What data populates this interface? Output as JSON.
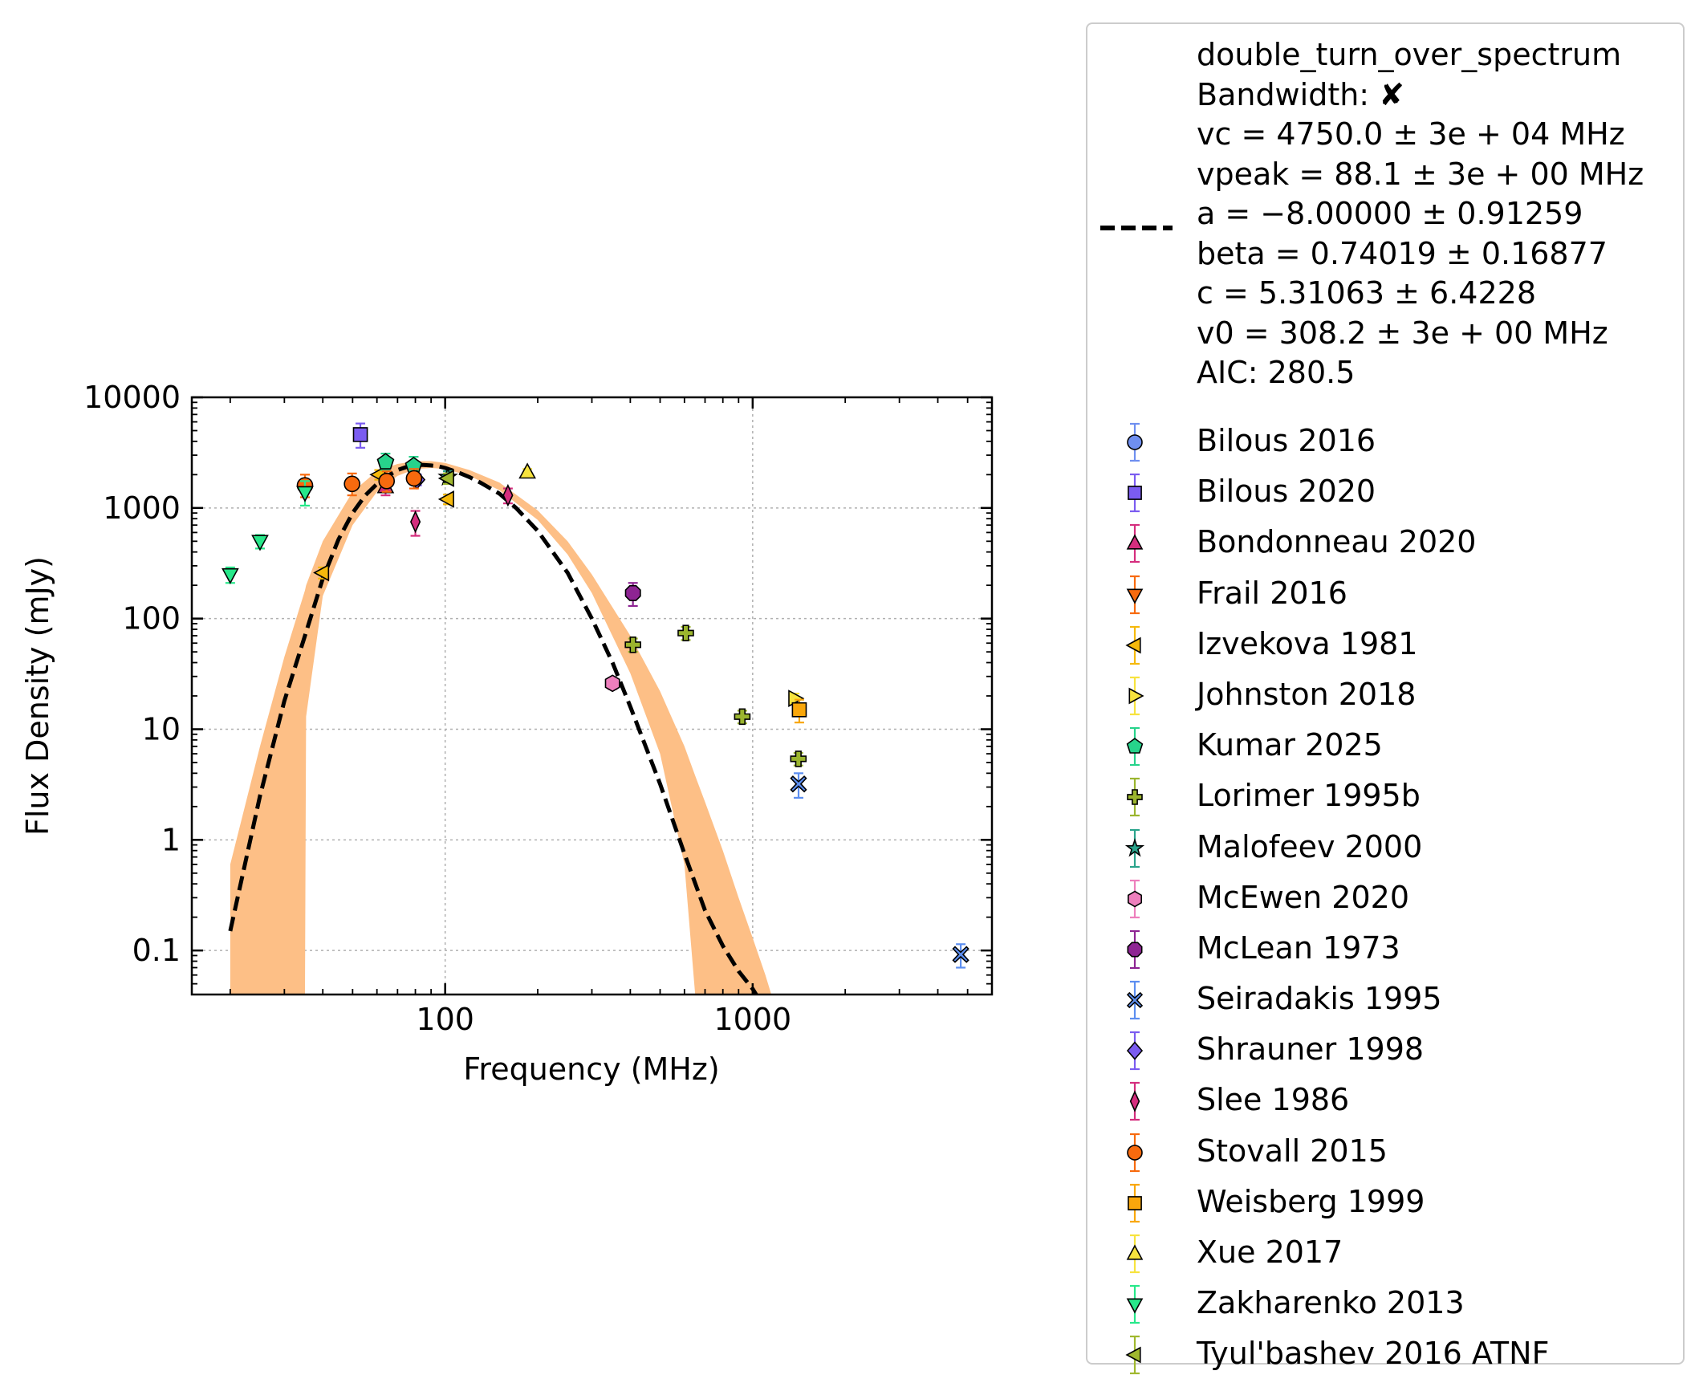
{
  "chart_data": {
    "type": "scatter",
    "xlabel": "Frequency (MHz)",
    "ylabel": "Flux Density (mJy)",
    "xscale": "log",
    "yscale": "log",
    "xlim": [
      15,
      6000
    ],
    "ylim": [
      0.04,
      10000
    ],
    "grid": true,
    "legend_position": "outside right",
    "x_tick_labels": [
      {
        "value": 100,
        "label": "100"
      },
      {
        "value": 1000,
        "label": "1000"
      }
    ],
    "y_tick_labels": [
      {
        "value": 0.1,
        "label": "0.1"
      },
      {
        "value": 1,
        "label": "1"
      },
      {
        "value": 10,
        "label": "10"
      },
      {
        "value": 100,
        "label": "100"
      },
      {
        "value": 1000,
        "label": "1000"
      },
      {
        "value": 10000,
        "label": "10000"
      }
    ],
    "fit": {
      "model_name": "double_turn_over_spectrum",
      "legend_lines": [
        "double_turn_over_spectrum",
        "Bandwidth: ✘",
        "vc = 4750.0 ± 3e + 04 MHz",
        "vpeak = 88.1 ± 3e + 00 MHz",
        "a = −8.00000 ± 0.91259",
        "beta = 0.74019 ± 0.16877",
        "c = 5.31063 ± 6.4228",
        "v0 = 308.2 ± 3e + 00 MHz",
        "AIC: 280.5"
      ],
      "curve": {
        "x": [
          20,
          25,
          30,
          35,
          40,
          45,
          50,
          55,
          60,
          65,
          70,
          75,
          80,
          85,
          90,
          95,
          100,
          110,
          120,
          130,
          150,
          170,
          200,
          250,
          300,
          350,
          400,
          500,
          600,
          700,
          800,
          900,
          1000,
          1050
        ],
        "y": [
          0.15,
          2.5,
          18,
          70,
          230,
          520,
          900,
          1300,
          1650,
          1950,
          2200,
          2350,
          2450,
          2450,
          2420,
          2380,
          2300,
          2100,
          1900,
          1700,
          1350,
          1000,
          620,
          260,
          100,
          40,
          16,
          3.2,
          0.75,
          0.23,
          0.11,
          0.065,
          0.045,
          0.036
        ]
      },
      "band": {
        "x": [
          20,
          25,
          30,
          35,
          35.3,
          40,
          50,
          60,
          70,
          80,
          90,
          100,
          120,
          150,
          200,
          250,
          300,
          400,
          500,
          600,
          650,
          700,
          800,
          900,
          1000,
          1100,
          1150
        ],
        "upper": [
          0.6,
          7,
          45,
          180,
          200,
          500,
          1400,
          2150,
          2500,
          2650,
          2650,
          2550,
          2200,
          1700,
          950,
          500,
          250,
          70,
          22,
          7,
          3.8,
          2.2,
          0.8,
          0.3,
          0.13,
          0.06,
          0.04
        ],
        "lower": [
          0.04,
          0.04,
          0.04,
          0.04,
          13,
          160,
          700,
          1400,
          1950,
          2250,
          2300,
          2250,
          1950,
          1450,
          780,
          380,
          170,
          32,
          6,
          0.6,
          0.04,
          0.04,
          0.04,
          0.04,
          0.04,
          0.04,
          0.04
        ],
        "color": "#fdbf86"
      }
    },
    "series": [
      {
        "name": "Bilous 2016",
        "marker": "circle",
        "color": "#6f8ff0",
        "points": []
      },
      {
        "name": "Bilous 2020",
        "marker": "square",
        "color": "#7b5cf0",
        "points": [
          {
            "x": 53,
            "y": 4600,
            "lo": 3500,
            "hi": 5800
          }
        ]
      },
      {
        "name": "Bondonneau 2020",
        "marker": "triangle-up",
        "color": "#d52e7e",
        "points": [
          {
            "x": 64,
            "y": 1550,
            "lo": 1300,
            "hi": 1850
          }
        ]
      },
      {
        "name": "Frail 2016",
        "marker": "triangle-down",
        "color": "#f76a0e",
        "points": []
      },
      {
        "name": "Izvekova 1981",
        "marker": "triangle-left",
        "color": "#f5b90c",
        "points": [
          {
            "x": 40,
            "y": 260,
            "lo": 230,
            "hi": 290
          },
          {
            "x": 61,
            "y": 2000,
            "lo": 1800,
            "hi": 2200
          },
          {
            "x": 102,
            "y": 1200,
            "lo": 1080,
            "hi": 1320
          }
        ]
      },
      {
        "name": "Johnston 2018",
        "marker": "triangle-right",
        "color": "#f7e33e",
        "points": [
          {
            "x": 1369,
            "y": 19,
            "lo": 17,
            "hi": 21
          }
        ]
      },
      {
        "name": "Kumar 2025",
        "marker": "pentagon",
        "color": "#27d38b",
        "points": [
          {
            "x": 64,
            "y": 2600,
            "lo": 2200,
            "hi": 3100
          },
          {
            "x": 79,
            "y": 2400,
            "lo": 2000,
            "hi": 2900
          }
        ]
      },
      {
        "name": "Lorimer 1995b",
        "marker": "plus",
        "color": "#9bb52e",
        "points": [
          {
            "x": 408,
            "y": 58,
            "lo": 50,
            "hi": 66
          },
          {
            "x": 606,
            "y": 74,
            "lo": 64,
            "hi": 84
          },
          {
            "x": 925,
            "y": 13,
            "lo": 11.3,
            "hi": 14.7
          },
          {
            "x": 1408,
            "y": 5.4,
            "lo": 4.7,
            "hi": 6.1
          }
        ]
      },
      {
        "name": "Malofeev 2000",
        "marker": "star",
        "color": "#2ba48c",
        "points": [
          {
            "x": 102,
            "y": 1900,
            "lo": 1650,
            "hi": 2150
          }
        ]
      },
      {
        "name": "McEwen 2020",
        "marker": "hexagon",
        "color": "#ee7fbd",
        "points": [
          {
            "x": 350,
            "y": 26,
            "lo": 23,
            "hi": 29
          }
        ]
      },
      {
        "name": "McLean 1973",
        "marker": "octagon",
        "color": "#8e2493",
        "points": [
          {
            "x": 408,
            "y": 170,
            "lo": 130,
            "hi": 210
          }
        ]
      },
      {
        "name": "Seiradakis 1995",
        "marker": "x",
        "color": "#5c8ef0",
        "points": [
          {
            "x": 1410,
            "y": 3.2,
            "lo": 2.4,
            "hi": 4.0
          },
          {
            "x": 4750,
            "y": 0.092,
            "lo": 0.07,
            "hi": 0.114
          }
        ]
      },
      {
        "name": "Shrauner 1998",
        "marker": "diamond",
        "color": "#7b5cf0",
        "points": [
          {
            "x": 81,
            "y": 1800,
            "lo": 1600,
            "hi": 2000
          }
        ]
      },
      {
        "name": "Slee 1986",
        "marker": "thin-diamond",
        "color": "#d52e7e",
        "points": [
          {
            "x": 80,
            "y": 750,
            "lo": 560,
            "hi": 940
          },
          {
            "x": 160,
            "y": 1300,
            "lo": 1100,
            "hi": 1500
          }
        ]
      },
      {
        "name": "Stovall 2015",
        "marker": "circle",
        "color": "#f76a0e",
        "points": [
          {
            "x": 35,
            "y": 1600,
            "lo": 1250,
            "hi": 2000
          },
          {
            "x": 49.8,
            "y": 1650,
            "lo": 1300,
            "hi": 2050
          },
          {
            "x": 64.5,
            "y": 1750,
            "lo": 1400,
            "hi": 2150
          },
          {
            "x": 79.2,
            "y": 1850,
            "lo": 1500,
            "hi": 2250
          }
        ]
      },
      {
        "name": "Weisberg 1999",
        "marker": "square",
        "color": "#f9a70c",
        "points": [
          {
            "x": 1418,
            "y": 15,
            "lo": 11.5,
            "hi": 18.5
          }
        ]
      },
      {
        "name": "Xue 2017",
        "marker": "triangle-up",
        "color": "#f7e33e",
        "points": [
          {
            "x": 185,
            "y": 2100,
            "lo": 1950,
            "hi": 2250
          }
        ]
      },
      {
        "name": "Zakharenko 2013",
        "marker": "triangle-down",
        "color": "#27e88a",
        "points": [
          {
            "x": 20,
            "y": 250,
            "lo": 210,
            "hi": 290
          },
          {
            "x": 25,
            "y": 500,
            "lo": 430,
            "hi": 570
          },
          {
            "x": 35,
            "y": 1380,
            "lo": 1050,
            "hi": 1750
          }
        ]
      },
      {
        "name": "Tyul'bashev 2016 ATNF",
        "marker": "triangle-left",
        "color": "#a0b82e",
        "points": [
          {
            "x": 102,
            "y": 1850,
            "lo": 1650,
            "hi": 2050
          }
        ]
      }
    ]
  }
}
